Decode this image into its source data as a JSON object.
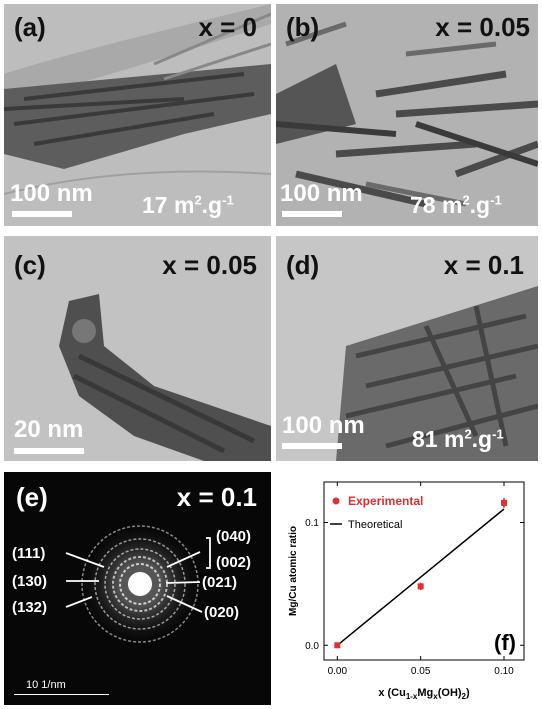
{
  "panels": {
    "a": {
      "label": "(a)",
      "condition": "x = 0",
      "scale": "100 nm",
      "area": "17 m",
      "area_sup1": "2",
      "area_mid": ".g",
      "area_sup2": "-1"
    },
    "b": {
      "label": "(b)",
      "condition": "x = 0.05",
      "scale": "100 nm",
      "area": "78 m",
      "area_sup1": "2",
      "area_mid": ".g",
      "area_sup2": "-1"
    },
    "c": {
      "label": "(c)",
      "condition": "x = 0.05",
      "scale": "20 nm"
    },
    "d": {
      "label": "(d)",
      "condition": "x = 0.1",
      "scale": "100 nm",
      "area": "81 m",
      "area_sup1": "2",
      "area_mid": ".g",
      "area_sup2": "-1"
    },
    "e": {
      "label": "(e)",
      "condition": "x = 0.1",
      "scale": "10 1/nm",
      "planes": {
        "p111": "(111)",
        "p130": "(130)",
        "p132": "(132)",
        "p040": "(040)",
        "p002": "(002)",
        "p021": "(021)",
        "p020": "(020)"
      }
    },
    "f": {
      "label": "(f)"
    }
  },
  "chart_data": {
    "type": "scatter",
    "title": "",
    "xlabel": "x (Cu1-xMgx(OH)2)",
    "ylabel": "Mg/Cu atomic ratio",
    "xlim": [
      -0.008,
      0.112
    ],
    "ylim": [
      -0.012,
      0.133
    ],
    "xticks": [
      "0.00",
      "0.05",
      "0.10"
    ],
    "yticks": [
      "0.0",
      "0.1"
    ],
    "series": [
      {
        "name": "Experimental",
        "color": "#e03030",
        "x": [
          0.0,
          0.05,
          0.1
        ],
        "y": [
          0.0,
          0.048,
          0.116
        ],
        "err": [
          0.002,
          0.003,
          0.004
        ]
      },
      {
        "name": "Theoretical",
        "color": "#000000",
        "x": [
          0.0,
          0.1
        ],
        "y": [
          0.0,
          0.111
        ]
      }
    ],
    "legend_position": "top-left"
  }
}
